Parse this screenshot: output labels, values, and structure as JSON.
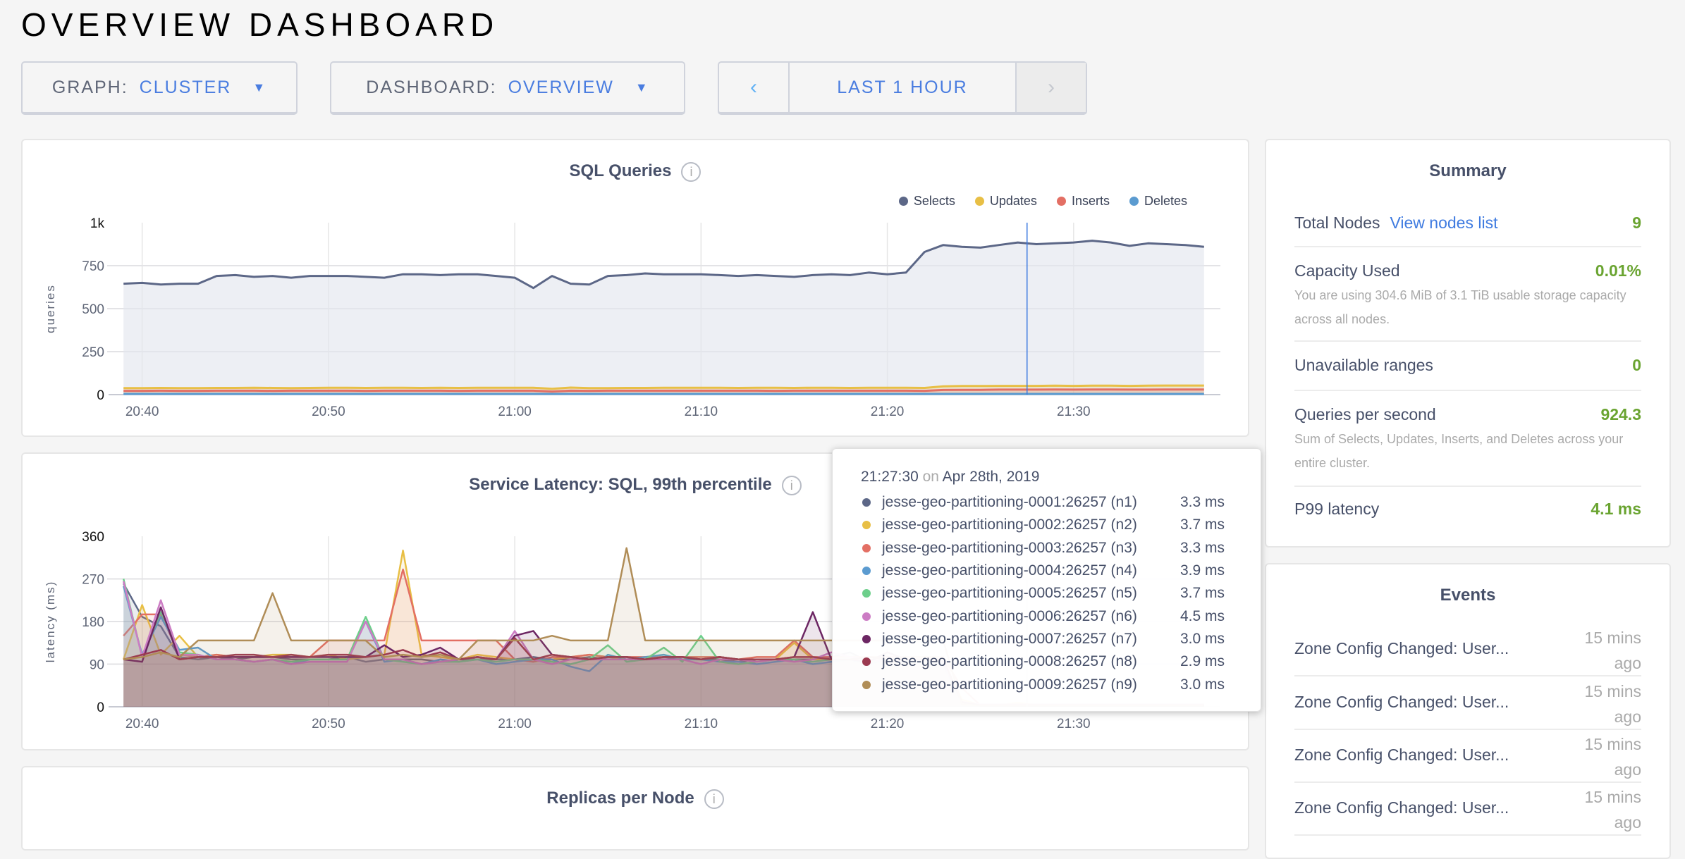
{
  "header": {
    "title": "OVERVIEW DASHBOARD"
  },
  "controls": {
    "graph": {
      "label": "GRAPH:",
      "value": "CLUSTER"
    },
    "dashboard": {
      "label": "DASHBOARD:",
      "value": "OVERVIEW"
    },
    "time": {
      "prev": "‹",
      "range": "LAST 1 HOUR",
      "next": "›"
    }
  },
  "chart_data": [
    {
      "type": "area",
      "title": "SQL Queries",
      "ylabel": "queries",
      "xlabel": "",
      "ylim": [
        0,
        1000
      ],
      "yticks": [
        "0",
        "250",
        "500",
        "750",
        "1k"
      ],
      "ytick_values": [
        0,
        250,
        500,
        750,
        1000
      ],
      "xticks": [
        "20:40",
        "20:50",
        "21:00",
        "21:10",
        "21:20",
        "21:30"
      ],
      "xlim": [
        "20:38:30",
        "21:37:30"
      ],
      "grid": true,
      "legend": "top-right",
      "cursor": "21:27:30",
      "x": [
        "20:39",
        "20:40",
        "20:41",
        "20:42",
        "20:43",
        "20:44",
        "20:45",
        "20:46",
        "20:47",
        "20:48",
        "20:49",
        "20:50",
        "20:51",
        "20:52",
        "20:53",
        "20:54",
        "20:55",
        "20:56",
        "20:57",
        "20:58",
        "20:59",
        "21:00",
        "21:01",
        "21:02",
        "21:03",
        "21:04",
        "21:05",
        "21:06",
        "21:07",
        "21:08",
        "21:09",
        "21:10",
        "21:11",
        "21:12",
        "21:13",
        "21:14",
        "21:15",
        "21:16",
        "21:17",
        "21:18",
        "21:19",
        "21:20",
        "21:21",
        "21:22",
        "21:23",
        "21:24",
        "21:25",
        "21:26",
        "21:27",
        "21:28",
        "21:29",
        "21:30",
        "21:31",
        "21:32",
        "21:33",
        "21:34",
        "21:35",
        "21:36",
        "21:37"
      ],
      "series": [
        {
          "name": "Selects",
          "color": "#5c6787",
          "values": [
            645,
            650,
            640,
            645,
            645,
            690,
            695,
            685,
            690,
            680,
            690,
            690,
            690,
            685,
            680,
            700,
            700,
            695,
            700,
            700,
            690,
            680,
            620,
            690,
            645,
            640,
            690,
            695,
            705,
            700,
            700,
            700,
            695,
            690,
            695,
            690,
            685,
            695,
            700,
            695,
            710,
            700,
            710,
            830,
            870,
            860,
            855,
            870,
            885,
            875,
            880,
            885,
            895,
            885,
            865,
            880,
            875,
            870,
            860
          ]
        },
        {
          "name": "Updates",
          "color": "#e8bf45",
          "values": [
            38,
            38,
            39,
            38,
            38,
            39,
            39,
            40,
            39,
            38,
            39,
            40,
            40,
            39,
            40,
            40,
            39,
            40,
            39,
            40,
            40,
            40,
            40,
            34,
            41,
            38,
            38,
            39,
            39,
            40,
            40,
            40,
            40,
            39,
            40,
            40,
            39,
            40,
            40,
            39,
            40,
            40,
            40,
            39,
            48,
            50,
            50,
            51,
            51,
            51,
            52,
            51,
            52,
            52,
            51,
            52,
            53,
            53,
            53
          ]
        },
        {
          "name": "Inserts",
          "color": "#e36f64",
          "values": [
            22,
            22,
            23,
            22,
            22,
            23,
            23,
            23,
            22,
            23,
            23,
            23,
            23,
            22,
            23,
            23,
            23,
            23,
            22,
            23,
            23,
            23,
            23,
            18,
            23,
            22,
            23,
            23,
            23,
            23,
            23,
            23,
            23,
            23,
            23,
            22,
            23,
            23,
            23,
            23,
            23,
            23,
            23,
            22,
            27,
            28,
            28,
            29,
            29,
            29,
            30,
            29,
            30,
            30,
            29,
            29,
            30,
            30,
            30
          ]
        },
        {
          "name": "Deletes",
          "color": "#5b9bd0",
          "values": [
            4,
            4,
            4,
            4,
            4,
            4,
            4,
            4,
            4,
            4,
            4,
            4,
            4,
            4,
            4,
            4,
            4,
            4,
            4,
            4,
            4,
            4,
            4,
            4,
            4,
            4,
            4,
            4,
            4,
            4,
            4,
            4,
            4,
            4,
            4,
            4,
            4,
            4,
            4,
            4,
            4,
            4,
            4,
            4,
            4,
            4,
            4,
            4,
            4,
            4,
            4,
            4,
            4,
            4,
            4,
            4,
            4,
            4,
            4
          ]
        }
      ]
    },
    {
      "type": "area",
      "title": "Service Latency: SQL, 99th percentile",
      "ylabel": "latency (ms)",
      "xlabel": "",
      "ylim": [
        0,
        360
      ],
      "yticks": [
        "0",
        "90",
        "180",
        "270",
        "360"
      ],
      "ytick_values": [
        0,
        90,
        180,
        270,
        360
      ],
      "xticks": [
        "20:40",
        "20:50",
        "21:00",
        "21:10",
        "21:20",
        "21:30"
      ],
      "xlim": [
        "20:38:30",
        "21:37:30"
      ],
      "grid": true,
      "cursor": "21:27:30",
      "x": [
        "20:39",
        "20:40",
        "20:41",
        "20:42",
        "20:43",
        "20:44",
        "20:45",
        "20:46",
        "20:47",
        "20:48",
        "20:49",
        "20:50",
        "20:51",
        "20:52",
        "20:53",
        "20:54",
        "20:55",
        "20:56",
        "20:57",
        "20:58",
        "20:59",
        "21:00",
        "21:01",
        "21:02",
        "21:03",
        "21:04",
        "21:05",
        "21:06",
        "21:07",
        "21:08",
        "21:09",
        "21:10",
        "21:11",
        "21:12",
        "21:13",
        "21:14",
        "21:15",
        "21:16",
        "21:17",
        "21:18",
        "21:19",
        "21:20",
        "21:21",
        "21:22",
        "21:23",
        "21:24",
        "21:25",
        "21:26",
        "21:27",
        "21:28",
        "21:29",
        "21:30",
        "21:31",
        "21:32",
        "21:33",
        "21:34",
        "21:35",
        "21:36",
        "21:37"
      ],
      "series": [
        {
          "color": "#5c6787",
          "values": [
            260,
            190,
            170,
            105,
            100,
            105,
            100,
            105,
            105,
            100,
            100,
            100,
            105,
            95,
            100,
            100,
            100,
            95,
            100,
            100,
            100,
            100,
            105,
            100,
            100,
            105,
            100,
            100,
            100,
            105,
            100,
            100,
            100,
            95,
            100,
            100,
            100,
            100,
            105,
            115,
            95,
            100,
            95,
            100,
            90,
            10,
            3,
            3,
            3,
            3,
            3,
            3,
            3,
            3,
            3,
            3,
            3,
            3,
            3
          ]
        },
        {
          "color": "#e8bf45",
          "values": [
            100,
            215,
            110,
            150,
            105,
            110,
            105,
            105,
            110,
            110,
            105,
            110,
            100,
            105,
            110,
            330,
            110,
            105,
            100,
            110,
            105,
            100,
            95,
            100,
            105,
            110,
            105,
            100,
            105,
            100,
            100,
            100,
            105,
            100,
            100,
            100,
            135,
            100,
            100,
            100,
            105,
            100,
            100,
            100,
            95,
            15,
            4,
            4,
            8,
            4,
            4,
            4,
            4,
            4,
            4,
            4,
            4,
            4,
            4
          ]
        },
        {
          "color": "#e36f64",
          "values": [
            150,
            195,
            195,
            110,
            105,
            110,
            105,
            105,
            105,
            105,
            105,
            140,
            140,
            140,
            140,
            290,
            140,
            140,
            140,
            140,
            140,
            100,
            95,
            105,
            105,
            110,
            105,
            105,
            105,
            105,
            105,
            105,
            105,
            100,
            105,
            105,
            140,
            105,
            105,
            105,
            105,
            105,
            105,
            105,
            105,
            40,
            3,
            3,
            3,
            3,
            3,
            3,
            3,
            3,
            3,
            3,
            3,
            3,
            3
          ]
        },
        {
          "color": "#5b9bd0",
          "values": [
            255,
            110,
            190,
            120,
            125,
            100,
            100,
            95,
            100,
            90,
            100,
            100,
            100,
            180,
            95,
            100,
            90,
            100,
            95,
            100,
            90,
            95,
            100,
            100,
            85,
            75,
            110,
            100,
            105,
            110,
            100,
            100,
            95,
            95,
            90,
            95,
            100,
            90,
            95,
            100,
            90,
            100,
            95,
            95,
            90,
            10,
            4,
            4,
            4,
            4,
            4,
            4,
            4,
            4,
            4,
            4,
            4,
            4,
            4
          ]
        },
        {
          "color": "#6dcf8b",
          "values": [
            270,
            105,
            200,
            115,
            110,
            100,
            100,
            95,
            100,
            95,
            100,
            100,
            100,
            190,
            100,
            95,
            90,
            95,
            95,
            100,
            95,
            100,
            100,
            95,
            90,
            100,
            130,
            95,
            100,
            125,
            95,
            150,
            95,
            90,
            95,
            100,
            100,
            95,
            100,
            100,
            95,
            100,
            100,
            100,
            95,
            10,
            4,
            4,
            4,
            4,
            4,
            4,
            4,
            4,
            4,
            4,
            4,
            4,
            4
          ]
        },
        {
          "color": "#cc7cc4",
          "values": [
            265,
            105,
            225,
            110,
            110,
            100,
            100,
            95,
            100,
            90,
            95,
            95,
            95,
            180,
            100,
            100,
            90,
            95,
            100,
            105,
            100,
            160,
            100,
            90,
            100,
            100,
            100,
            100,
            100,
            100,
            100,
            90,
            100,
            100,
            95,
            100,
            95,
            100,
            115,
            105,
            100,
            95,
            100,
            100,
            95,
            10,
            5,
            5,
            5,
            5,
            5,
            5,
            5,
            5,
            5,
            5,
            5,
            5,
            5
          ]
        },
        {
          "color": "#6c2663",
          "values": [
            100,
            95,
            210,
            100,
            105,
            105,
            105,
            105,
            105,
            105,
            105,
            105,
            105,
            105,
            130,
            105,
            110,
            125,
            100,
            105,
            100,
            150,
            160,
            110,
            105,
            100,
            105,
            105,
            100,
            105,
            105,
            100,
            105,
            100,
            100,
            100,
            105,
            200,
            100,
            100,
            95,
            115,
            100,
            100,
            100,
            10,
            3,
            3,
            3,
            3,
            3,
            3,
            3,
            3,
            3,
            3,
            3,
            3,
            3
          ]
        },
        {
          "color": "#9b3a50",
          "values": [
            100,
            110,
            120,
            100,
            105,
            105,
            110,
            110,
            105,
            110,
            105,
            110,
            110,
            105,
            110,
            120,
            105,
            115,
            100,
            105,
            100,
            145,
            100,
            110,
            105,
            100,
            105,
            105,
            100,
            105,
            105,
            100,
            105,
            100,
            100,
            100,
            105,
            105,
            100,
            100,
            105,
            100,
            100,
            100,
            100,
            10,
            3,
            3,
            3,
            3,
            3,
            3,
            3,
            3,
            3,
            3,
            3,
            3,
            3
          ]
        },
        {
          "color": "#b08d57",
          "values": [
            100,
            105,
            115,
            105,
            140,
            140,
            140,
            140,
            240,
            140,
            140,
            140,
            140,
            140,
            105,
            110,
            105,
            110,
            100,
            140,
            140,
            140,
            140,
            150,
            140,
            140,
            140,
            335,
            140,
            140,
            140,
            140,
            140,
            140,
            140,
            140,
            140,
            140,
            140,
            140,
            140,
            140,
            140,
            140,
            140,
            5,
            3,
            3,
            3,
            3,
            3,
            3,
            3,
            3,
            3,
            3,
            3,
            3,
            3
          ]
        }
      ]
    }
  ],
  "replicas": {
    "title": "Replicas per Node"
  },
  "summary": {
    "title": "Summary",
    "total_nodes": {
      "label": "Total Nodes",
      "link": "View nodes list",
      "value": "9"
    },
    "capacity": {
      "label": "Capacity Used",
      "value": "0.01%",
      "desc": "You are using 304.6 MiB of 3.1 TiB usable storage capacity across all nodes."
    },
    "unavailable": {
      "label": "Unavailable ranges",
      "value": "0"
    },
    "qps": {
      "label": "Queries per second",
      "value": "924.3",
      "desc": "Sum of Selects, Updates, Inserts, and Deletes across your entire cluster."
    },
    "p99": {
      "label": "P99 latency",
      "value": "4.1 ms"
    }
  },
  "events": {
    "title": "Events",
    "items": [
      {
        "text": "Zone Config Changed: User...",
        "time": "15 mins ago"
      },
      {
        "text": "Zone Config Changed: User...",
        "time": "15 mins ago"
      },
      {
        "text": "Zone Config Changed: User...",
        "time": "15 mins ago"
      },
      {
        "text": "Zone Config Changed: User...",
        "time": "15 mins ago"
      }
    ]
  },
  "tooltip": {
    "time": "21:27:30",
    "on": "on",
    "date": "Apr 28th, 2019",
    "rows": [
      {
        "name": "jesse-geo-partitioning-0001:26257 (n1)",
        "value": "3.3 ms",
        "color": "#5c6787"
      },
      {
        "name": "jesse-geo-partitioning-0002:26257 (n2)",
        "value": "3.7 ms",
        "color": "#e8bf45"
      },
      {
        "name": "jesse-geo-partitioning-0003:26257 (n3)",
        "value": "3.3 ms",
        "color": "#e36f64"
      },
      {
        "name": "jesse-geo-partitioning-0004:26257 (n4)",
        "value": "3.9 ms",
        "color": "#5b9bd0"
      },
      {
        "name": "jesse-geo-partitioning-0005:26257 (n5)",
        "value": "3.7 ms",
        "color": "#6dcf8b"
      },
      {
        "name": "jesse-geo-partitioning-0006:26257 (n6)",
        "value": "4.5 ms",
        "color": "#cc7cc4"
      },
      {
        "name": "jesse-geo-partitioning-0007:26257 (n7)",
        "value": "3.0 ms",
        "color": "#6c2663"
      },
      {
        "name": "jesse-geo-partitioning-0008:26257 (n8)",
        "value": "2.9 ms",
        "color": "#9b3a50"
      },
      {
        "name": "jesse-geo-partitioning-0009:26257 (n9)",
        "value": "3.0 ms",
        "color": "#b08d57"
      }
    ]
  }
}
